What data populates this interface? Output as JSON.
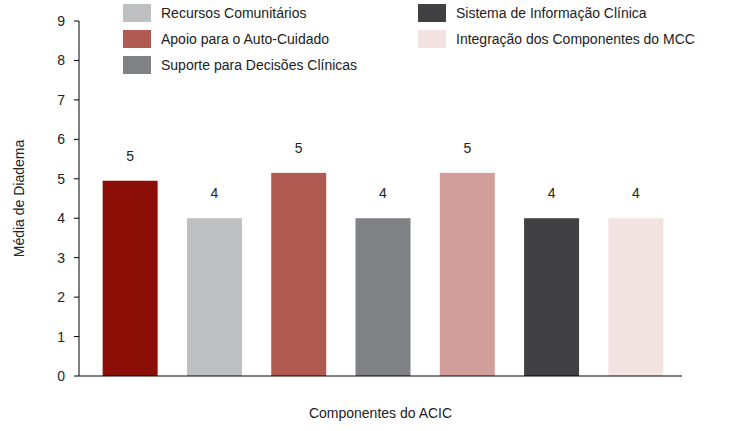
{
  "chart_data": {
    "type": "bar",
    "x_label": "Componentes do ACIC",
    "y_label": "Média de Diadema",
    "categories": [
      null,
      "Recursos Comunitários",
      "Apoio para o Auto-Cuidado",
      "Suporte para Decisões Clínicas",
      null,
      "Sistema de Informação Clínica",
      "Integração dos Componentes do MCC"
    ],
    "values": [
      4.95,
      4,
      5.15,
      4,
      5.15,
      4,
      4
    ],
    "value_labels": [
      "5",
      "4",
      "5",
      "4",
      "5",
      "4",
      "4"
    ],
    "colors": [
      "#8b0f06",
      "#bebfc1",
      "#b05a52",
      "#808184",
      "#d19e9b",
      "#414143",
      "#f3e4e3"
    ],
    "ylim": [
      0,
      9
    ],
    "yticks": [
      0,
      1,
      2,
      3,
      4,
      5,
      6,
      7,
      8,
      9
    ],
    "grid": false,
    "data_labels": true,
    "legend": "top"
  }
}
